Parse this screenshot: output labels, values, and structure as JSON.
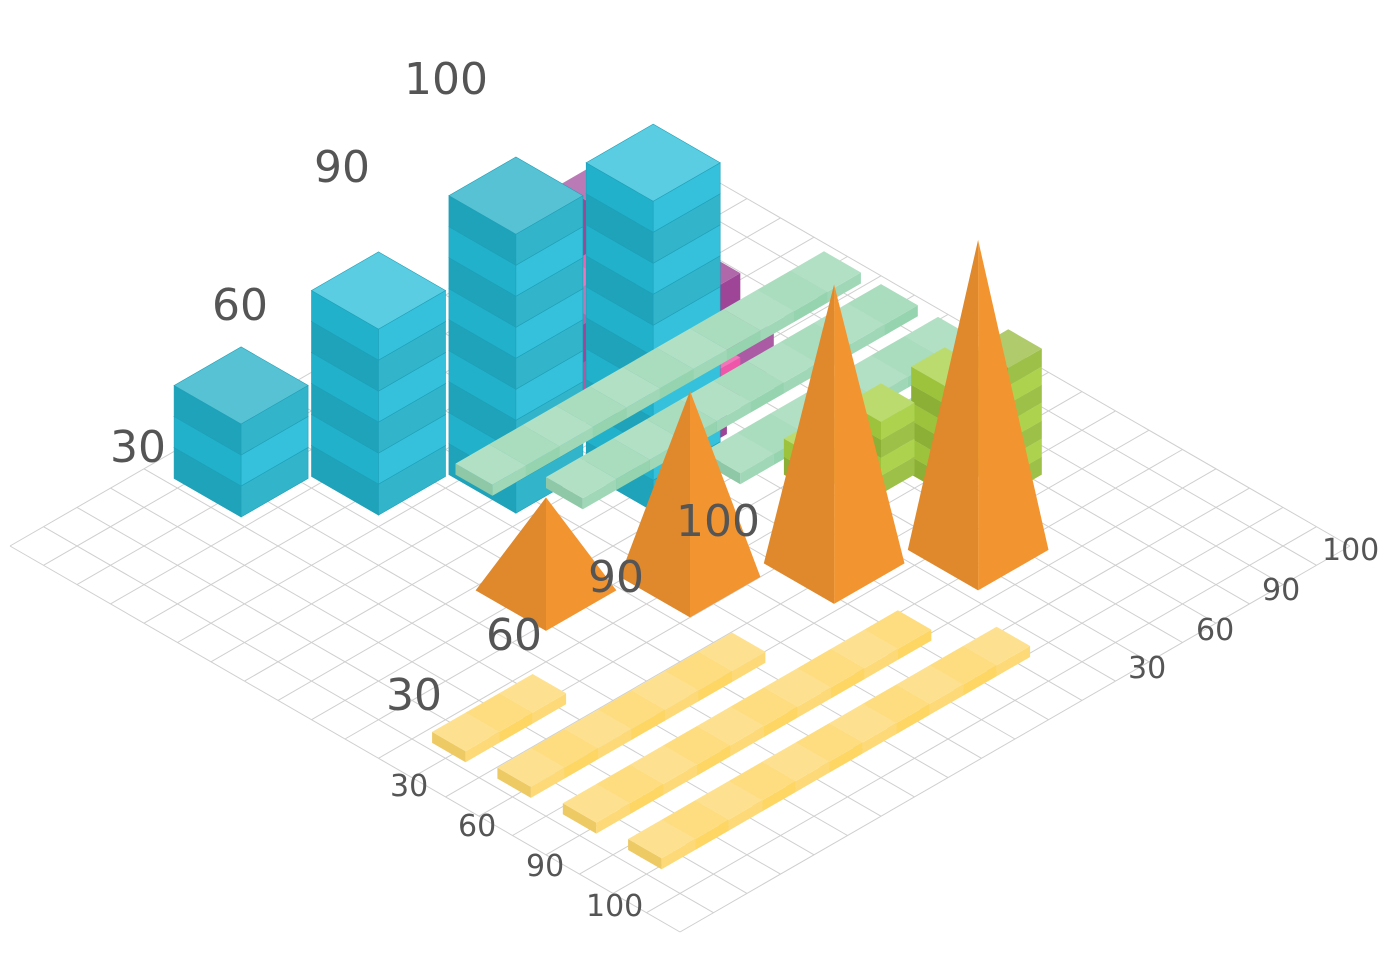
{
  "colors": {
    "grid": "#cfcfcf",
    "blue": "#23bcd8",
    "orange": "#f29430",
    "purple": "#96358f",
    "pink": "#ec2d95",
    "lime": "#a6cf3f",
    "mint": "#8dd0a8",
    "yellow": "#fdd257",
    "label": "#555555"
  },
  "chart_data": [
    {
      "type": "bar",
      "name": "blue-block-stacks",
      "categories": [
        "30",
        "60",
        "90",
        "100"
      ],
      "values": [
        30,
        60,
        90,
        100
      ],
      "labels": [
        "30",
        "60",
        "90",
        "100"
      ]
    },
    {
      "type": "bar",
      "name": "orange-pyramids",
      "categories": [
        "30",
        "60",
        "90",
        "100"
      ],
      "values": [
        30,
        60,
        90,
        100
      ],
      "labels": [
        "30",
        "60",
        "90",
        "100"
      ]
    },
    {
      "type": "area",
      "name": "ribbon-waves",
      "series": [
        {
          "color": "purple",
          "values": [
            1,
            1,
            2,
            3,
            3,
            1
          ]
        },
        {
          "color": "pink",
          "values": [
            1,
            2,
            2,
            1,
            1
          ]
        },
        {
          "color": "purple",
          "values": [
            3,
            3,
            2,
            2,
            1
          ]
        }
      ]
    },
    {
      "type": "bar",
      "name": "green-step-stack",
      "values": [
        2,
        4,
        6,
        7
      ]
    },
    {
      "type": "bar",
      "name": "mint-horizontal-rows",
      "categories": [
        "30",
        "60",
        "90",
        "100"
      ],
      "values": [
        30,
        60,
        90,
        100
      ],
      "labels": [
        "30",
        "60",
        "90",
        "100"
      ]
    },
    {
      "type": "bar",
      "name": "yellow-horizontal-rows",
      "categories": [
        "30",
        "60",
        "90",
        "100"
      ],
      "values": [
        30,
        60,
        90,
        100
      ],
      "labels": [
        "30",
        "60",
        "90",
        "100"
      ]
    }
  ]
}
